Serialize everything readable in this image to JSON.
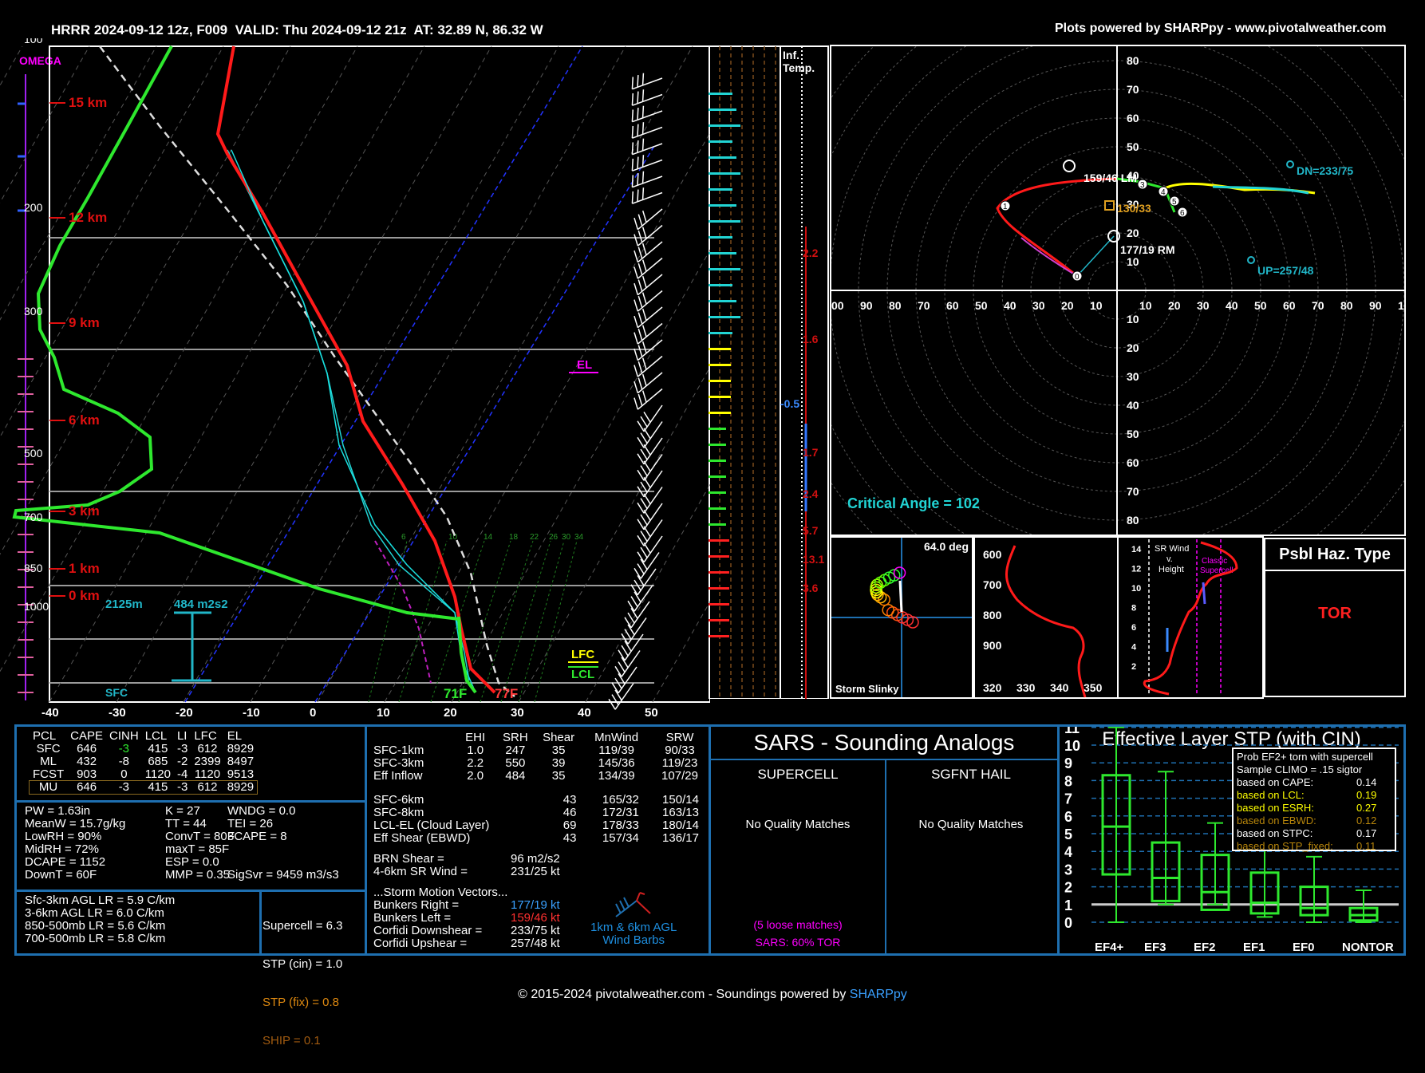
{
  "header": {
    "title": "HRRR 2024-09-12 12z, F009  VALID: Thu 2024-09-12 21z  AT: 32.89 N, 86.32 W",
    "credit": "Plots powered by SHARPpy - www.pivotalweather.com"
  },
  "skewt": {
    "omega_label": "OMEGA",
    "pressure_labels": [
      "100",
      "200",
      "300",
      "500",
      "700",
      "850",
      "1000"
    ],
    "height_labels": [
      "15 km",
      "12 km",
      "9 km",
      "6 km",
      "3 km",
      "1 km",
      "0 km"
    ],
    "temp_ticks": [
      "-40",
      "-30",
      "-20",
      "-10",
      "0",
      "10",
      "20",
      "30",
      "40",
      "50"
    ],
    "el": "EL",
    "lfc": "LFC",
    "lcl": "LCL",
    "sfc": "SFC",
    "height_2125": "2125m",
    "srh_label": "484 m2s2",
    "sfc_td": "71F",
    "sfc_t": "77F",
    "mix_ratios": [
      "6",
      "10",
      "14",
      "18",
      "22",
      "26",
      "30",
      "34"
    ]
  },
  "inf_temp": {
    "title": "Inf.\nTemp.",
    "values": [
      "2.2",
      "1.6",
      "-0.5",
      "1.7",
      "2.4",
      "5.7",
      "13.1",
      "3.6"
    ]
  },
  "hodograph": {
    "critical_angle": "Critical Angle = 102",
    "labels": {
      "lm": "159/46 LM",
      "mean": "130/33",
      "rm": "177/19 RM",
      "dn": "DN=233/75",
      "up": "UP=257/48"
    },
    "rings": [
      "10",
      "20",
      "30",
      "40",
      "50",
      "60",
      "70",
      "80"
    ],
    "xticks_left": [
      "00",
      "90",
      "80",
      "70",
      "60",
      "50",
      "40",
      "30",
      "20",
      "10"
    ],
    "xticks_right": [
      "10",
      "20",
      "30",
      "40",
      "50",
      "60",
      "70",
      "80",
      "90",
      "1"
    ],
    "hodo_points": [
      "1",
      "3",
      "4",
      "5",
      "6",
      "0"
    ]
  },
  "storm_slinky": {
    "label": "Storm Slinky",
    "angle": "64.0 deg"
  },
  "theta_e": {
    "ylabels": [
      "600",
      "700",
      "800",
      "900"
    ],
    "xlabels": [
      "320",
      "330",
      "340",
      "350"
    ]
  },
  "srwind": {
    "title": "SR Wind\nv.\nHeight",
    "classic": "Classic\nSupercell",
    "ylabels": [
      "14",
      "12",
      "10",
      "8",
      "6",
      "4",
      "2"
    ]
  },
  "haz": {
    "title": "Psbl Haz. Type",
    "value": "TOR"
  },
  "parcels": {
    "headers": [
      "PCL",
      "CAPE",
      "CINH",
      "LCL",
      "LI",
      "LFC",
      "EL"
    ],
    "rows": [
      [
        "SFC",
        "646",
        "-3",
        "415",
        "-3",
        "612",
        "8929"
      ],
      [
        "ML",
        "432",
        "-8",
        "685",
        "-2",
        "2399",
        "8497"
      ],
      [
        "FCST",
        "903",
        "0",
        "1120",
        "-4",
        "1120",
        "9513"
      ],
      [
        "MU",
        "646",
        "-3",
        "415",
        "-3",
        "612",
        "8929"
      ]
    ]
  },
  "thermo": {
    "col1": [
      "PW = 1.63in",
      "MeanW = 15.7g/kg",
      "LowRH = 90%",
      "MidRH = 72%",
      "DCAPE = 1152",
      "DownT = 60F"
    ],
    "col2": [
      "K = 27",
      "TT = 44",
      "ConvT = 80F",
      "maxT = 85F",
      "ESP = 0.0",
      "MMP = 0.35"
    ],
    "col3": [
      "WNDG = 0.0",
      "TEI = 26",
      "3CAPE = 8",
      "",
      "",
      "SigSvr = 9459 m3/s3"
    ]
  },
  "lapse": [
    "Sfc-3km AGL LR = 5.9 C/km",
    "3-6km AGL LR = 6.0 C/km",
    "850-500mb LR = 5.6 C/km",
    "700-500mb LR = 5.8 C/km"
  ],
  "composite": {
    "supercell": "Supercell = 6.3",
    "stp_cin": "STP (cin) = 1.0",
    "stp_fix": "STP (fix) = 0.8",
    "ship": "SHIP = 0.1"
  },
  "kinematic": {
    "headers": [
      "",
      "EHI",
      "SRH",
      "Shear",
      "MnWind",
      "SRW"
    ],
    "rows": [
      [
        "SFC-1km",
        "1.0",
        "247",
        "35",
        "119/39",
        "90/33"
      ],
      [
        "SFC-3km",
        "2.2",
        "550",
        "39",
        "145/36",
        "119/23"
      ],
      [
        "Eff Inflow",
        "2.0",
        "484",
        "35",
        "134/39",
        "107/29"
      ]
    ],
    "rows2": [
      [
        "SFC-6km",
        "",
        "",
        "43",
        "165/32",
        "150/14"
      ],
      [
        "SFC-8km",
        "",
        "",
        "46",
        "172/31",
        "163/13"
      ],
      [
        "LCL-EL (Cloud Layer)",
        "",
        "",
        "69",
        "178/33",
        "180/14"
      ],
      [
        "Eff Shear (EBWD)",
        "",
        "",
        "43",
        "157/34",
        "136/17"
      ]
    ],
    "brn_label": "BRN Shear =",
    "brn_val": "96 m2/s2",
    "srw_label": "4-6km SR Wind =",
    "srw_val": "231/25 kt",
    "smv_title": "...Storm Motion Vectors...",
    "smv": [
      {
        "label": "Bunkers Right =",
        "val": "177/19 kt"
      },
      {
        "label": "Bunkers Left =",
        "val": "159/46 kt"
      },
      {
        "label": "Corfidi Downshear =",
        "val": "233/75 kt"
      },
      {
        "label": "Corfidi Upshear =",
        "val": "257/48 kt"
      }
    ],
    "barbs_label": "1km & 6km AGL\nWind Barbs"
  },
  "sars": {
    "title": "SARS - Sounding Analogs",
    "supercell": "SUPERCELL",
    "hail": "SGFNT HAIL",
    "supercell_result": "No Quality Matches",
    "hail_result": "No Quality Matches",
    "loose": "(5 loose matches)",
    "tor": "SARS: 60% TOR"
  },
  "stp": {
    "title": "Effective Layer STP (with CIN)",
    "yticks": [
      "11",
      "10",
      "9",
      "8",
      "7",
      "6",
      "5",
      "4",
      "3",
      "2",
      "1",
      "0"
    ],
    "categories": [
      "EF4+",
      "EF3",
      "EF2",
      "EF1",
      "EF0",
      "NONTOR"
    ],
    "prob_title": "Prob EF2+ torn with supercell",
    "prob_sub": "Sample CLIMO = .15 sigtor",
    "prob_rows": [
      {
        "label": "based on CAPE:",
        "val": "0.14",
        "color": "#ffffff"
      },
      {
        "label": "based on LCL:",
        "val": "0.19",
        "color": "#ffff00"
      },
      {
        "label": "based on ESRH:",
        "val": "0.27",
        "color": "#ffff00"
      },
      {
        "label": "based on EBWD:",
        "val": "0.12",
        "color": "#b8860b"
      },
      {
        "label": "based on STPC:",
        "val": "0.17",
        "color": "#ffffff"
      },
      {
        "label": "based on STP_fixed:",
        "val": "0.11",
        "color": "#b8860b"
      }
    ]
  },
  "footer": {
    "text": "© 2015-2024 pivotalweather.com - Soundings powered by ",
    "link": "SHARPpy"
  }
}
